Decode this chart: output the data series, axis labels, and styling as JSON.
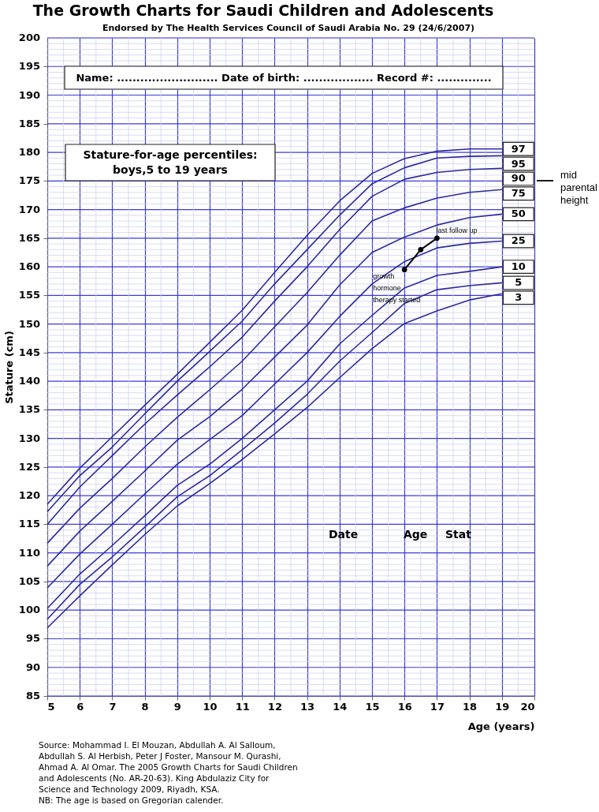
{
  "chart_data": {
    "type": "line",
    "title": "The Growth Charts for Saudi Children and Adolescents",
    "subtitle": "Endorsed by The Health Services Council of Saudi Arabia No. 29 (24/6/2007)",
    "xlabel": "Age (years)",
    "ylabel": "Stature (cm)",
    "x": [
      5,
      6,
      7,
      8,
      9,
      10,
      11,
      12,
      13,
      14,
      15,
      16,
      17,
      18,
      19
    ],
    "series": [
      {
        "name": "97",
        "color": "#2b2b9c",
        "values": [
          118.5,
          124.8,
          130.3,
          135.8,
          141.2,
          146.8,
          152.4,
          159,
          165.5,
          171.5,
          176.3,
          178.9,
          180.2,
          180.6,
          180.6
        ]
      },
      {
        "name": "95",
        "color": "#2b2b9c",
        "values": [
          117.2,
          123.5,
          128.5,
          134.3,
          140,
          145.2,
          150.5,
          157,
          163,
          169,
          174.5,
          177.3,
          179,
          179.3,
          179.4
        ]
      },
      {
        "name": "90",
        "color": "#2b2b9c",
        "values": [
          115,
          121.5,
          127,
          132.5,
          137.6,
          142.5,
          147.7,
          154,
          160,
          166.5,
          172.3,
          175.3,
          176.5,
          177,
          177.2
        ]
      },
      {
        "name": "75",
        "color": "#2b2b9c",
        "values": [
          111.7,
          117.8,
          123,
          128.5,
          133.7,
          138.5,
          143.5,
          149.5,
          155.5,
          162,
          168,
          170.3,
          172,
          173,
          173.5
        ]
      },
      {
        "name": "50",
        "color": "#2b2b9c",
        "values": [
          107.7,
          113.8,
          119,
          124.3,
          129.7,
          133.8,
          138.6,
          144.2,
          149.8,
          156.8,
          162.5,
          165.2,
          167.3,
          168.6,
          169.2
        ]
      },
      {
        "name": "25",
        "color": "#2b2b9c",
        "values": [
          103.9,
          109.8,
          115,
          120.3,
          125.5,
          129.8,
          134,
          139.5,
          145,
          151.3,
          157,
          160.9,
          163.3,
          164.1,
          164.5
        ]
      },
      {
        "name": "10",
        "color": "#2b2b9c",
        "values": [
          100.3,
          106.3,
          111.3,
          116.5,
          121.8,
          125.5,
          130,
          135,
          140,
          146.5,
          151.5,
          156.3,
          158.5,
          159.2,
          160
        ]
      },
      {
        "name": "5",
        "color": "#2b2b9c",
        "values": [
          98.4,
          104.5,
          109.3,
          114.5,
          119.8,
          123.5,
          128,
          132.7,
          137.7,
          143.5,
          148.5,
          153.6,
          156,
          156.7,
          157.2
        ]
      },
      {
        "name": "3",
        "color": "#2b2b9c",
        "values": [
          96.9,
          102.5,
          107.9,
          113.2,
          118.2,
          122.1,
          126.3,
          130.8,
          135.4,
          140.6,
          145.7,
          150.1,
          152.3,
          154.2,
          155.3
        ]
      },
      {
        "type": "line",
        "marker": "circle",
        "color": "#000000",
        "x": [
          16,
          16.5,
          17
        ],
        "values": [
          159.5,
          163,
          165
        ]
      }
    ],
    "xlim": [
      5,
      20
    ],
    "xticks": [
      5,
      6,
      7,
      8,
      9,
      10,
      11,
      12,
      13,
      14,
      15,
      16,
      17,
      18,
      19,
      20
    ],
    "ylim": [
      85,
      200
    ],
    "yticks": [
      85,
      90,
      95,
      100,
      105,
      110,
      115,
      120,
      125,
      130,
      135,
      140,
      145,
      150,
      155,
      160,
      165,
      170,
      175,
      180,
      185,
      190,
      195,
      200
    ],
    "grid": true,
    "marker": "none",
    "annotations": [
      "Name: .......................... Date of birth: .................. Record #: ..............",
      "Stature-for-age percentiles:\nboys,5 to 19 years",
      "Date",
      "Age",
      "Stat",
      "mid\nparental\nheight",
      {
        "text": "last follow up",
        "x": 17,
        "y": 165
      },
      {
        "text": "growth\nhormone\ntherapy started",
        "x": 16,
        "y": 159.5
      },
      "Source: Mohammad I. El Mouzan, Abdullah A. Al Salloum, Abdullah S. Al Herbish, Peter J Foster, Mansour M. Qurashi, Ahmad A. Al Omar. The 2005 Growth Charts for Saudi Children and Adolescents (No. AR-20-63). King Abdulaziz City for Science and Technology 2009, Riyadh, KSA.",
      "NB: The age is based on Gregorian calender."
    ]
  }
}
